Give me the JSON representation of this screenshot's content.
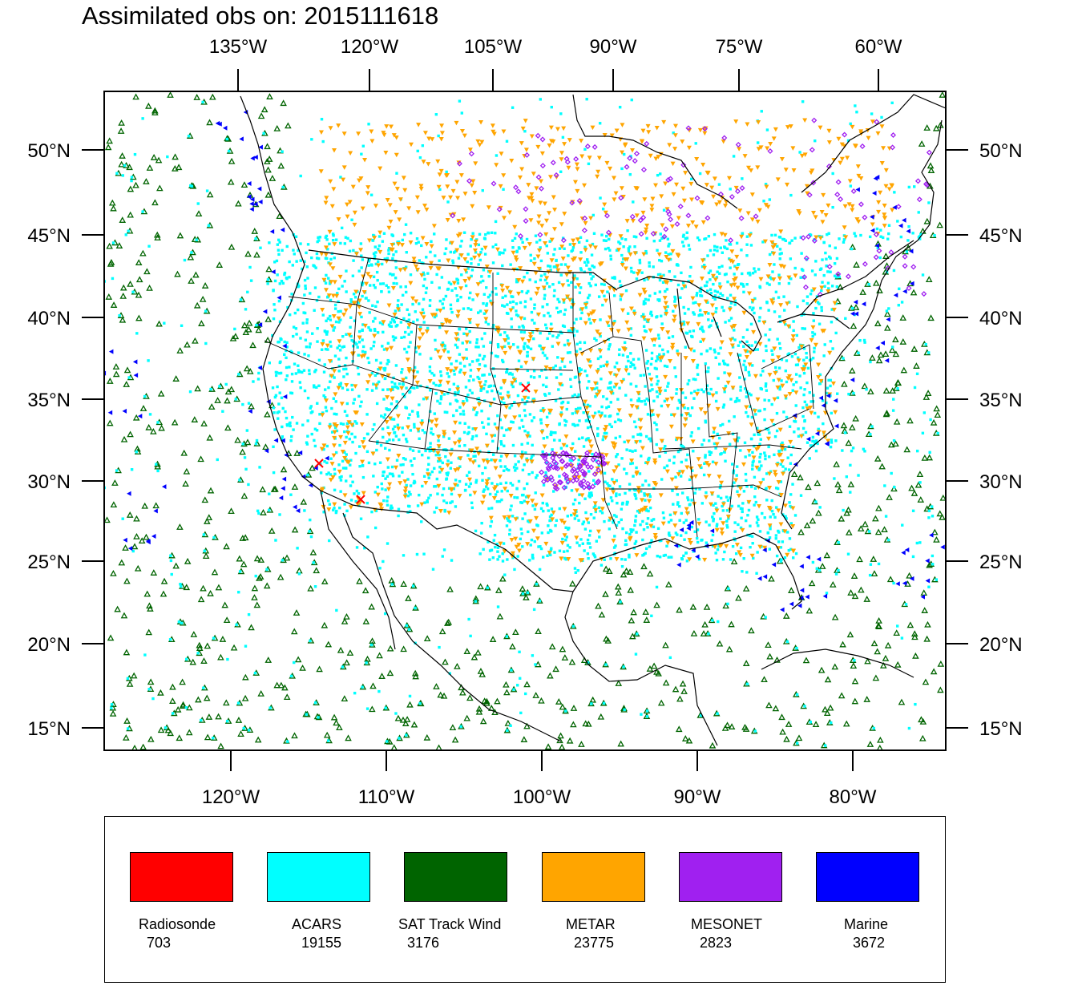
{
  "title": "Assimilated obs on: 2015111618",
  "axes": {
    "top_labels": [
      "135°W",
      "120°W",
      "105°W",
      "90°W",
      "75°W",
      "60°W"
    ],
    "bottom_labels": [
      "120°W",
      "110°W",
      "100°W",
      "90°W",
      "80°W"
    ],
    "left_labels": [
      "50°N",
      "45°N",
      "40°N",
      "35°N",
      "30°N",
      "25°N",
      "20°N",
      "15°N"
    ],
    "right_labels": [
      "50°N",
      "45°N",
      "40°N",
      "35°N",
      "30°N",
      "25°N",
      "20°N",
      "15°N"
    ]
  },
  "legend": [
    {
      "name": "Radiosonde",
      "count": "703",
      "color": "#ff0000"
    },
    {
      "name": "ACARS",
      "count": "19155",
      "color": "#00ffff"
    },
    {
      "name": "SAT Track Wind",
      "count": "3176",
      "color": "#006400"
    },
    {
      "name": "METAR",
      "count": "23775",
      "color": "#ffa500"
    },
    {
      "name": "MESONET",
      "count": "2823",
      "color": "#a020f0"
    },
    {
      "name": "Marine",
      "count": "3672",
      "color": "#0000ff"
    }
  ],
  "colors": {
    "frame": "#000000",
    "coastline": "#000000",
    "background": "#ffffff"
  },
  "map": {
    "projection": "lambert-conformal",
    "region": "CONUS",
    "observation_types": [
      "Radiosonde",
      "ACARS",
      "SAT Track Wind",
      "METAR",
      "MESONET",
      "Marine"
    ]
  }
}
